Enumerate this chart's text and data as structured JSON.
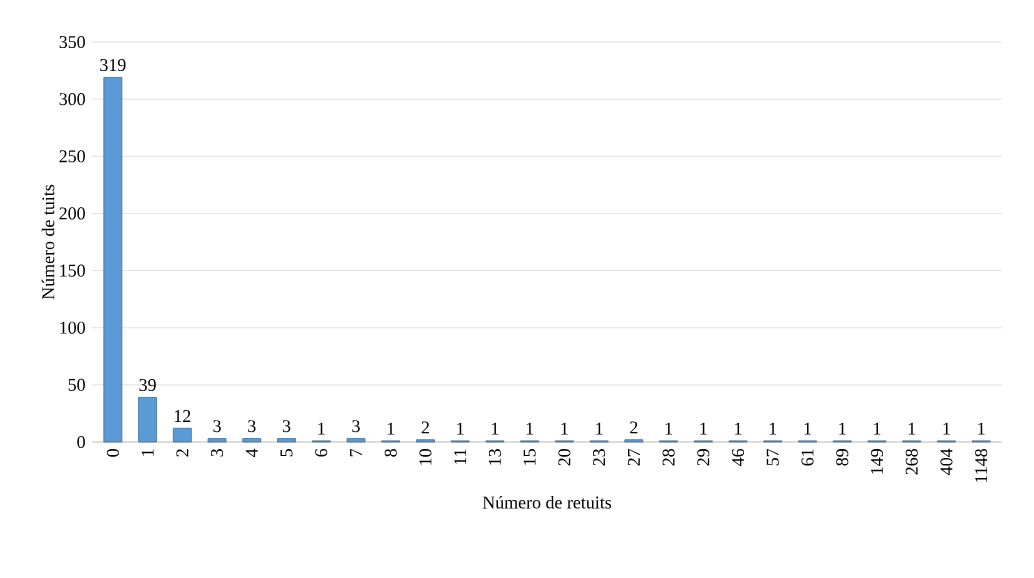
{
  "chart_data": {
    "type": "bar",
    "xlabel": "Número de retuits",
    "ylabel": "Número de tuits",
    "categories": [
      "0",
      "1",
      "2",
      "3",
      "4",
      "5",
      "6",
      "7",
      "8",
      "10",
      "11",
      "13",
      "15",
      "20",
      "23",
      "27",
      "28",
      "29",
      "46",
      "57",
      "61",
      "89",
      "149",
      "268",
      "404",
      "1148"
    ],
    "values": [
      319,
      39,
      12,
      3,
      3,
      3,
      1,
      3,
      1,
      2,
      1,
      1,
      1,
      1,
      1,
      2,
      1,
      1,
      1,
      1,
      1,
      1,
      1,
      1,
      1,
      1
    ],
    "color": "#5b9bd5",
    "ylim": [
      0,
      350
    ],
    "yticks": [
      0,
      50,
      100,
      150,
      200,
      250,
      300,
      350
    ],
    "grid": "y",
    "data_labels": true
  }
}
